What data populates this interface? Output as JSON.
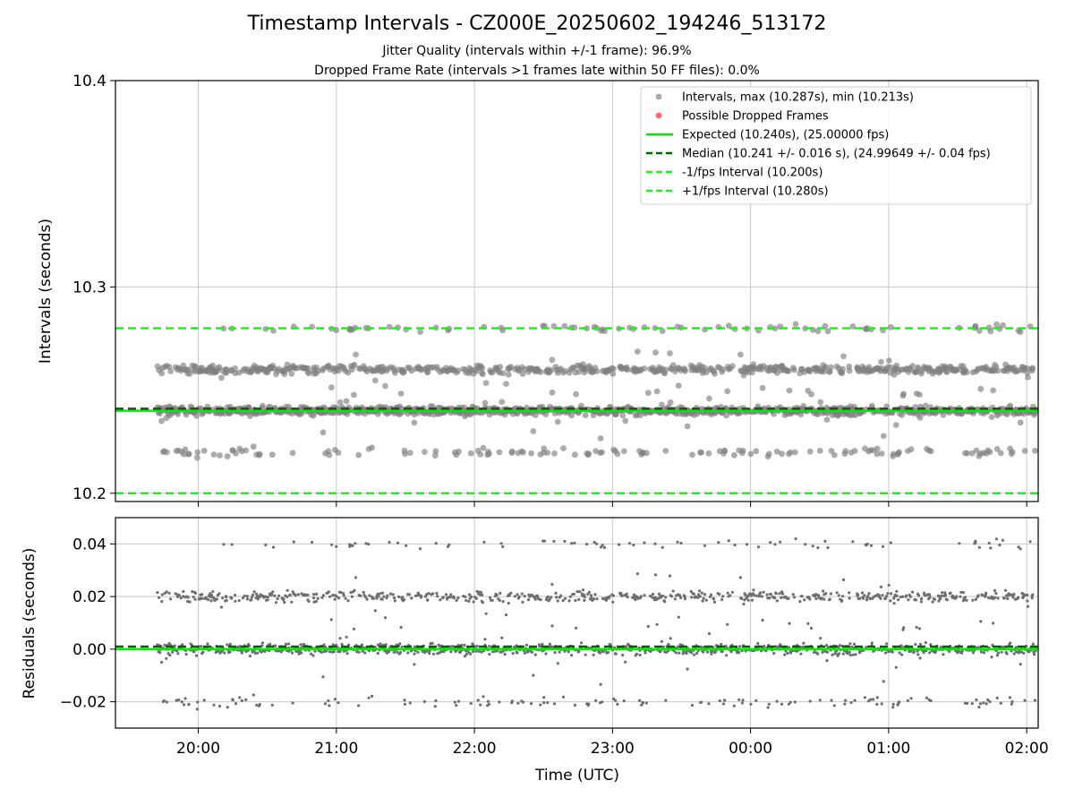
{
  "chart_data": [
    {
      "type": "scatter",
      "title": "Timestamp Intervals - CZ000E_20250602_194246_513172",
      "subtitle_lines": [
        "Jitter Quality (intervals within +/-1 frame): 96.9%",
        "Dropped Frame Rate (intervals >1 frames late within 50 FF files): 0.0%"
      ],
      "ylabel": "Intervals (seconds)",
      "ylim": [
        10.196,
        10.4
      ],
      "yticks": [
        10.2,
        10.3,
        10.4
      ],
      "ytick_labels": [
        "10.2",
        "10.3",
        "10.4"
      ],
      "grid": true,
      "legend_position": "upper right",
      "legend": [
        "Intervals, max (10.287s), min (10.213s)",
        "Possible Dropped Frames",
        "Expected (10.240s), (25.00000 fps)",
        "Median (10.241 +/- 0.016 s), (24.99649 +/- 0.04 fps)",
        "-1/fps Interval (10.200s)",
        "+1/fps Interval (10.280s)"
      ],
      "reference_lines": {
        "expected": 10.24,
        "median": 10.241,
        "minus_one_fps": 10.2,
        "plus_one_fps": 10.28
      },
      "series": [
        {
          "name": "Intervals, max (10.287s), min (10.213s)",
          "x_range": [
            "19:42",
            "02:04"
          ],
          "y_levels": [
            10.22,
            10.24,
            10.26,
            10.28
          ],
          "y_max": 10.287,
          "y_min": 10.213,
          "approx_points": 1800
        },
        {
          "name": "Possible Dropped Frames",
          "values": []
        }
      ]
    },
    {
      "type": "scatter",
      "xlabel": "Time (UTC)",
      "ylabel": "Residuals (seconds)",
      "xlim": [
        "19:24",
        "02:05"
      ],
      "xticks": [
        "20:00",
        "21:00",
        "22:00",
        "23:00",
        "00:00",
        "01:00",
        "02:00"
      ],
      "ylim": [
        -0.03,
        0.05
      ],
      "yticks": [
        -0.02,
        0.0,
        0.02,
        0.04
      ],
      "ytick_labels": [
        "−0.02",
        "0.00",
        "0.02",
        "0.04"
      ],
      "grid": true,
      "reference_lines": {
        "zero": 0.0,
        "median_offset": 0.001
      },
      "series": [
        {
          "name": "Residuals",
          "y_levels": [
            -0.02,
            0.0,
            0.02,
            0.04
          ],
          "approx_points": 1800
        }
      ]
    }
  ],
  "colors": {
    "points": "#808080",
    "residual_points": "#6e6e6e",
    "dropped": "#ff4d4d",
    "expected": "#00ee00",
    "median": "#006400",
    "interval_bounds": "#22ee22",
    "grid": "#c8c8c8"
  }
}
